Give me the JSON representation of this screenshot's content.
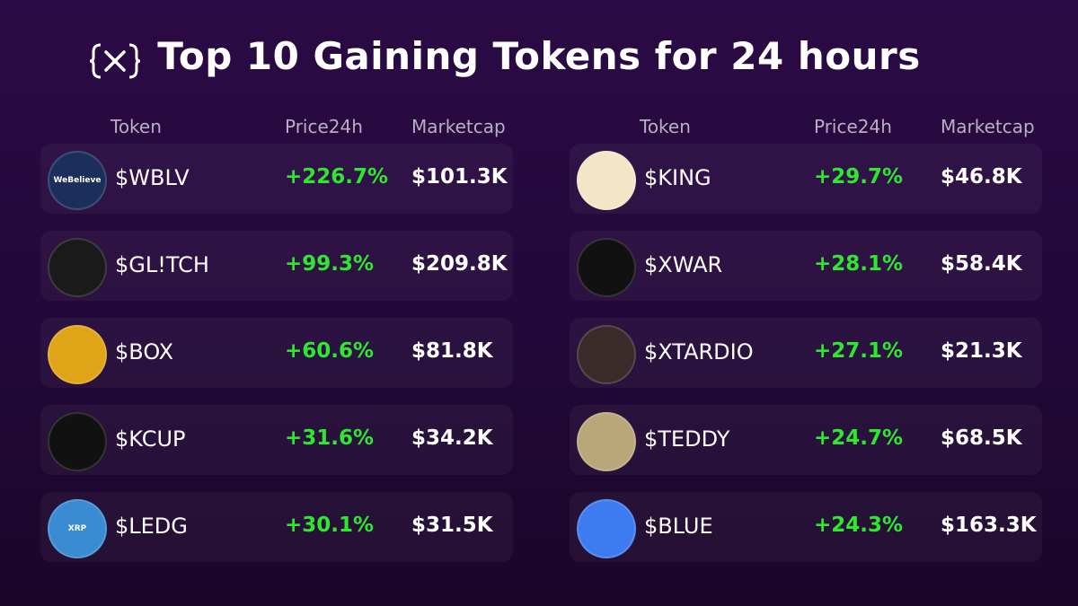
{
  "header": {
    "title": "Top 10 Gaining Tokens for 24 hours"
  },
  "panels": [
    {
      "columns": [
        "Token",
        "Price24h",
        "Marketcap"
      ],
      "rows": [
        {
          "token": "$WBLV",
          "price24h": "+226.7%",
          "marketcap": "$101.3K",
          "logo_text": "WeBelieve"
        },
        {
          "token": "$GL!TCH",
          "price24h": "+99.3%",
          "marketcap": "$209.8K"
        },
        {
          "token": "$BOX",
          "price24h": "+60.6%",
          "marketcap": "$81.8K"
        },
        {
          "token": "$KCUP",
          "price24h": "+31.6%",
          "marketcap": "$34.2K"
        },
        {
          "token": "$LEDG",
          "price24h": "+30.1%",
          "marketcap": "$31.5K",
          "logo_text": "XRP"
        }
      ]
    },
    {
      "columns": [
        "Token",
        "Price24h",
        "Marketcap"
      ],
      "rows": [
        {
          "token": "$KING",
          "price24h": "+29.7%",
          "marketcap": "$46.8K"
        },
        {
          "token": "$XWAR",
          "price24h": "+28.1%",
          "marketcap": "$58.4K"
        },
        {
          "token": "$XTARDIO",
          "price24h": "+27.1%",
          "marketcap": "$21.3K"
        },
        {
          "token": "$TEDDY",
          "price24h": "+24.7%",
          "marketcap": "$68.5K"
        },
        {
          "token": "$BLUE",
          "price24h": "+24.3%",
          "marketcap": "$163.3K"
        }
      ]
    }
  ]
}
